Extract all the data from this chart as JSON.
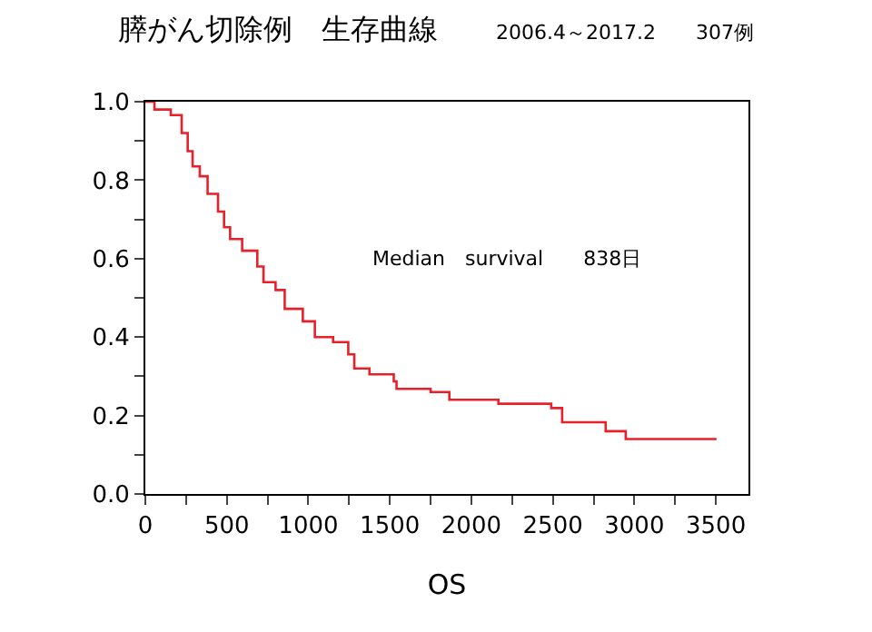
{
  "chart_data": {
    "type": "step",
    "title": "膵がん切除例　生存曲線",
    "subtitle": "2006.4～2017.2　　307例",
    "xlabel": "OS",
    "x": [
      0,
      56,
      156,
      223,
      260,
      290,
      334,
      382,
      446,
      483,
      520,
      594,
      687,
      725,
      799,
      855,
      966,
      1040,
      1152,
      1245,
      1282,
      1375,
      1524,
      1541,
      1750,
      1865,
      2166,
      2490,
      2557,
      2824,
      2947,
      3504
    ],
    "series": [
      {
        "color": "#e8202a",
        "values": [
          1.0,
          0.98,
          0.966,
          0.92,
          0.874,
          0.835,
          0.81,
          0.765,
          0.72,
          0.68,
          0.65,
          0.62,
          0.58,
          0.54,
          0.52,
          0.472,
          0.44,
          0.4,
          0.387,
          0.356,
          0.32,
          0.305,
          0.287,
          0.268,
          0.26,
          0.24,
          0.23,
          0.219,
          0.183,
          0.16,
          0.14,
          0.14
        ]
      }
    ],
    "xlim": [
      0,
      3700
    ],
    "xticks": [
      0,
      {
        "value": 250,
        "label": null
      },
      500,
      {
        "value": 750,
        "label": null
      },
      1000,
      {
        "value": 1250,
        "label": null
      },
      1500,
      {
        "value": 1750,
        "label": null
      },
      2000,
      {
        "value": 2250,
        "label": null
      },
      2500,
      {
        "value": 2750,
        "label": null
      },
      3000,
      {
        "value": 3250,
        "label": null
      },
      3500
    ],
    "ylim": [
      0,
      1
    ],
    "yticks": [
      {
        "value": 0,
        "label": "0.0"
      },
      {
        "value": 0.1,
        "label": null
      },
      {
        "value": 0.2,
        "label": "0.2"
      },
      {
        "value": 0.3,
        "label": null
      },
      {
        "value": 0.4,
        "label": "0.4"
      },
      {
        "value": 0.5,
        "label": null
      },
      {
        "value": 0.6,
        "label": "0.6"
      },
      {
        "value": 0.7,
        "label": null
      },
      {
        "value": 0.8,
        "label": "0.8"
      },
      {
        "value": 0.9,
        "label": null
      },
      {
        "value": 1,
        "label": "1.0"
      }
    ],
    "annotations": [
      "Median　survival　　838日"
    ],
    "grid": false,
    "marker": "none",
    "line_style": "solid"
  }
}
